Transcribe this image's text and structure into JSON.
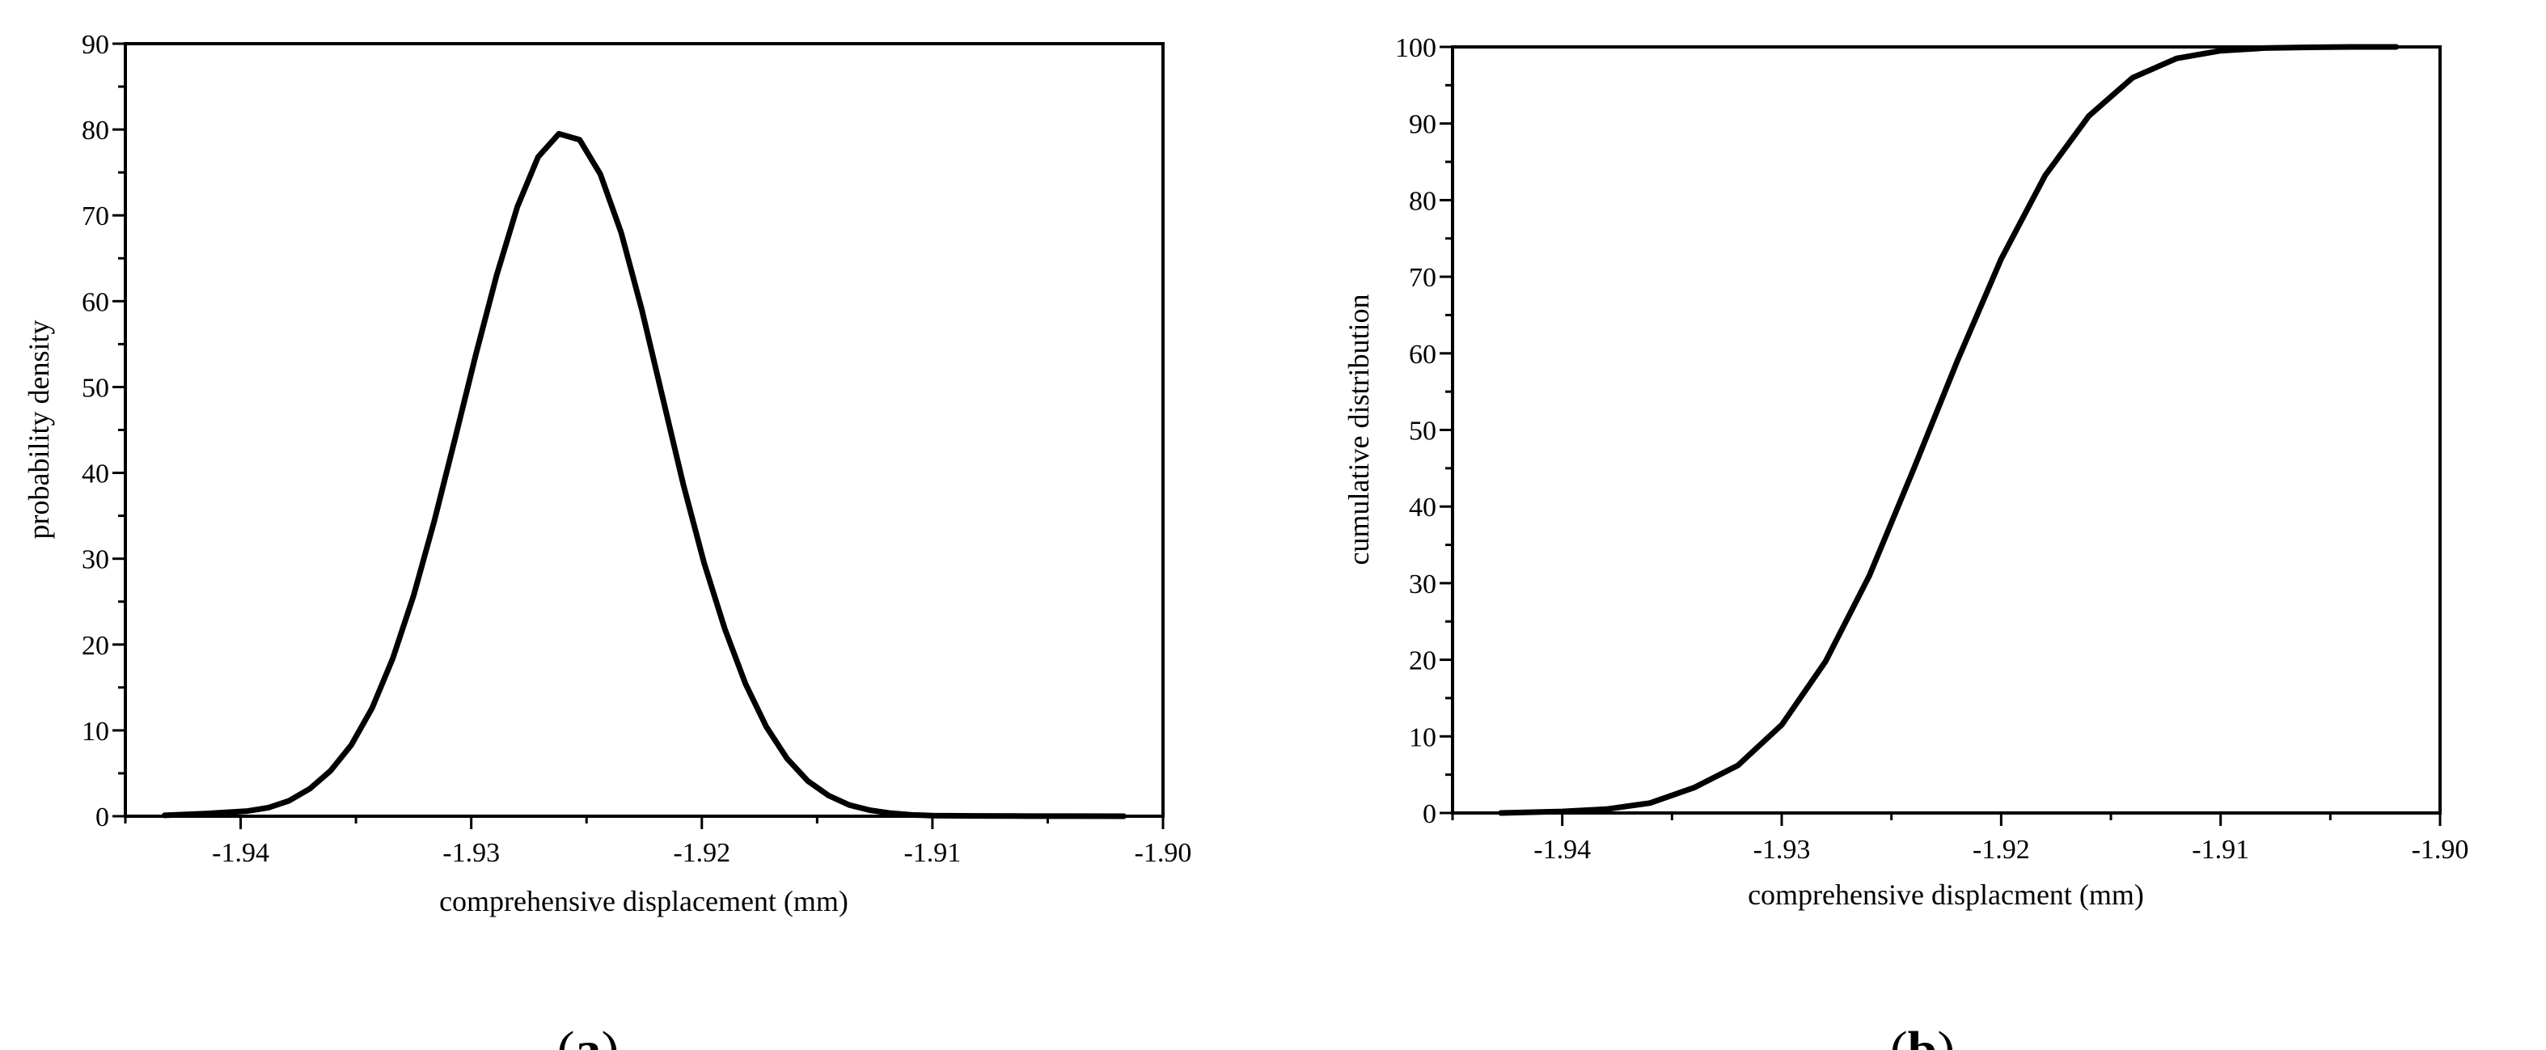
{
  "panels": [
    {
      "label_open": "(",
      "label_letter": "a",
      "label_close": ")",
      "chart_data": {
        "type": "line",
        "title": "",
        "xlabel": "comprehensive displacement (mm)",
        "ylabel": "probability density",
        "xlim": [
          -1.945,
          -1.9
        ],
        "ylim": [
          0,
          90
        ],
        "xticks": [
          -1.94,
          -1.93,
          -1.92,
          -1.91,
          -1.9
        ],
        "xtick_labels": [
          "-1.94",
          "-1.93",
          "-1.92",
          "-1.91",
          "-1.90"
        ],
        "yticks": [
          0,
          10,
          20,
          30,
          40,
          50,
          60,
          70,
          80,
          90
        ],
        "ytick_labels": [
          "0",
          "10",
          "20",
          "30",
          "40",
          "50",
          "60",
          "70",
          "80",
          "90"
        ],
        "grid": false,
        "series": [
          {
            "x": [
              -1.9433,
              -1.9415,
              -1.9397,
              -1.9388,
              -1.9379,
              -1.937,
              -1.9361,
              -1.9352,
              -1.9343,
              -1.9334,
              -1.9325,
              -1.9316,
              -1.9307,
              -1.9298,
              -1.9289,
              -1.928,
              -1.9271,
              -1.9262,
              -1.9253,
              -1.9244,
              -1.9235,
              -1.9226,
              -1.9217,
              -1.9208,
              -1.9199,
              -1.919,
              -1.9181,
              -1.9172,
              -1.9163,
              -1.9154,
              -1.9145,
              -1.9136,
              -1.9127,
              -1.9118,
              -1.9109,
              -1.91,
              -1.9082,
              -1.9064,
              -1.904,
              -1.9017
            ],
            "values": [
              0.1,
              0.3,
              0.6,
              1.0,
              1.8,
              3.2,
              5.3,
              8.3,
              12.6,
              18.4,
              25.7,
              34.4,
              44.0,
              53.8,
              63.0,
              71.0,
              76.8,
              79.5,
              78.8,
              74.8,
              68.0,
              59.0,
              48.8,
              38.6,
              29.5,
              21.8,
              15.4,
              10.4,
              6.7,
              4.1,
              2.4,
              1.3,
              0.7,
              0.35,
              0.15,
              0.08,
              0.04,
              0.02,
              0.01,
              0.0
            ]
          }
        ]
      }
    },
    {
      "label_open": "(",
      "label_letter": "b",
      "label_close": ")",
      "chart_data": {
        "type": "line",
        "title": "",
        "xlabel": "comprehensive displacment (mm)",
        "ylabel": "cumulative distribution",
        "xlim": [
          -1.945,
          -1.9
        ],
        "ylim": [
          0,
          100
        ],
        "xticks": [
          -1.94,
          -1.93,
          -1.92,
          -1.91,
          -1.9
        ],
        "xtick_labels": [
          "-1.94",
          "-1.93",
          "-1.92",
          "-1.91",
          "-1.90"
        ],
        "yticks": [
          0,
          10,
          20,
          30,
          40,
          50,
          60,
          70,
          80,
          90,
          100
        ],
        "ytick_labels": [
          "0",
          "10",
          "20",
          "30",
          "40",
          "50",
          "60",
          "70",
          "80",
          "90",
          "100"
        ],
        "grid": false,
        "series": [
          {
            "x": [
              -1.9428,
              -1.94,
              -1.938,
              -1.936,
              -1.934,
              -1.932,
              -1.93,
              -1.928,
              -1.926,
              -1.924,
              -1.922,
              -1.92,
              -1.918,
              -1.916,
              -1.914,
              -1.912,
              -1.91,
              -1.908,
              -1.906,
              -1.904,
              -1.902
            ],
            "values": [
              0.0,
              0.2,
              0.5,
              1.3,
              3.3,
              6.2,
              11.5,
              19.8,
              31.0,
              44.8,
              59.0,
              72.3,
              83.2,
              91.0,
              96.0,
              98.5,
              99.5,
              99.85,
              99.95,
              100.0,
              100.0
            ]
          }
        ]
      }
    }
  ]
}
